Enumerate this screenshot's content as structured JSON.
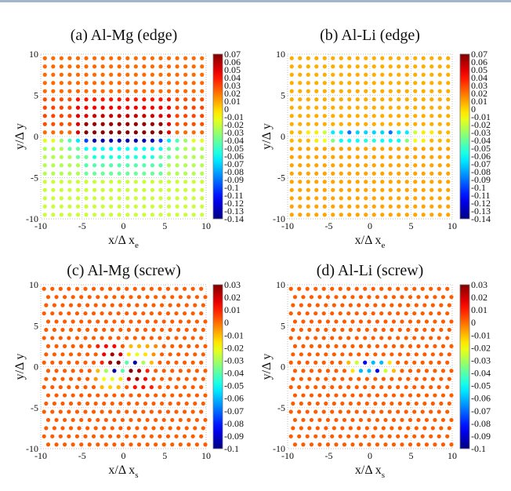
{
  "chart_data": [
    {
      "type": "scatter",
      "title": "(a) Al-Mg (edge)",
      "xlabel": "x/Δ x",
      "xlabel_sub": "e",
      "ylabel": "y/Δ y",
      "xlim": [
        -10,
        10
      ],
      "ylim": [
        -10,
        10
      ],
      "xticks": [
        "-10",
        "-5",
        "0",
        "5",
        "10"
      ],
      "yticks": [
        "10",
        "5",
        "0",
        "-5",
        "-10"
      ],
      "grid": true,
      "lattice": "edge",
      "colorbar": {
        "colormap": "jet",
        "range": [
          -0.14,
          0.07
        ],
        "ticks": [
          "0.07",
          "0.06",
          "0.05",
          "0.04",
          "0.03",
          "0.02",
          "0.01",
          "0",
          "-0.01",
          "-0.02",
          "-0.03",
          "-0.04",
          "-0.05",
          "-0.06",
          "-0.07",
          "-0.08",
          "-0.09",
          "-0.1",
          "-0.11",
          "-0.12",
          "-0.13",
          "-0.14"
        ]
      },
      "row_y": [
        9.5,
        8.5,
        7.5,
        6.5,
        5.5,
        4.5,
        3.5,
        2.5,
        1.5,
        0.5,
        -0.5,
        -1.5,
        -2.5,
        -3.5,
        -4.5,
        -5.5,
        -6.5,
        -7.5,
        -8.5,
        -9.5
      ],
      "row_background": [
        0.022,
        0.022,
        0.022,
        0.022,
        0.022,
        0.028,
        0.03,
        0.03,
        0.028,
        0.022,
        -0.015,
        -0.025,
        -0.025,
        -0.025,
        -0.025,
        -0.02,
        -0.02,
        -0.02,
        -0.02,
        -0.02
      ],
      "regions": [
        {
          "y": 4.5,
          "x_abs_max": 5.5,
          "v": 0.04
        },
        {
          "y": 3.5,
          "x_abs_max": 5.5,
          "v": 0.045
        },
        {
          "y": 2.5,
          "x_abs_max": 5.5,
          "v": 0.05
        },
        {
          "y": 2.5,
          "x_abs_max": 3.5,
          "v": 0.055
        },
        {
          "y": 1.5,
          "x_abs_max": 5.5,
          "v": 0.05
        },
        {
          "y": 1.5,
          "x_abs_max": 4.5,
          "v": 0.065
        },
        {
          "y": 0.5,
          "x_abs_max": 5.5,
          "v": 0.05
        },
        {
          "y": 0.5,
          "x_abs_max": 4.5,
          "v": 0.068
        },
        {
          "y": -0.5,
          "x_abs_max": 7.5,
          "v": -0.03
        },
        {
          "y": -0.5,
          "x_abs_max": 6.5,
          "v": -0.045
        },
        {
          "y": -0.5,
          "x_abs_max": 5.5,
          "v": -0.065
        },
        {
          "y": -0.5,
          "x_abs_max": 4.5,
          "v": -0.1
        },
        {
          "y": -0.5,
          "x_abs_max": 3.5,
          "v": -0.13
        },
        {
          "y": -1.5,
          "x_abs_max": 6.5,
          "v": -0.04
        },
        {
          "y": -1.5,
          "x_abs_max": 4.5,
          "v": -0.06
        },
        {
          "y": -2.5,
          "x_abs_max": 5.5,
          "v": -0.04
        },
        {
          "y": -2.5,
          "x_abs_max": 3.5,
          "v": -0.055
        },
        {
          "y": -3.5,
          "x_abs_max": 4.5,
          "v": -0.045
        },
        {
          "y": -4.5,
          "x_abs_max": 4.5,
          "v": -0.04
        }
      ]
    },
    {
      "type": "scatter",
      "title": "(b) Al-Li (edge)",
      "xlabel": "x/Δ x",
      "xlabel_sub": "e",
      "ylabel": "y/Δ y",
      "xlim": [
        -10,
        10
      ],
      "ylim": [
        -10,
        10
      ],
      "xticks": [
        "-10",
        "-5",
        "0",
        "5",
        "10"
      ],
      "yticks": [
        "10",
        "5",
        "0",
        "-5",
        "-10"
      ],
      "grid": true,
      "lattice": "edge",
      "colorbar": {
        "colormap": "jet",
        "range": [
          -0.14,
          0.07
        ],
        "ticks": [
          "0.07",
          "0.06",
          "0.05",
          "0.04",
          "0.03",
          "0.02",
          "0.01",
          "0",
          "-0.01",
          "-0.02",
          "-0.03",
          "-0.04",
          "-0.05",
          "-0.06",
          "-0.07",
          "-0.08",
          "-0.09",
          "-0.1",
          "-0.11",
          "-0.12",
          "-0.13",
          "-0.14"
        ]
      },
      "row_y": [
        9.5,
        8.5,
        7.5,
        6.5,
        5.5,
        4.5,
        3.5,
        2.5,
        1.5,
        0.5,
        -0.5,
        -1.5,
        -2.5,
        -3.5,
        -4.5,
        -5.5,
        -6.5,
        -7.5,
        -8.5,
        -9.5
      ],
      "row_background": [
        0.008,
        0.008,
        0.008,
        0.008,
        0.008,
        0.008,
        0.008,
        0.008,
        0.008,
        0.006,
        0.006,
        0.01,
        0.01,
        0.01,
        0.01,
        0.01,
        0.01,
        0.01,
        0.01,
        0.01
      ],
      "regions": [
        {
          "y": 0.5,
          "x_abs_max": 7.5,
          "v": -0.005
        },
        {
          "y": 0.5,
          "x_abs_max": 5.5,
          "v": -0.02
        },
        {
          "y": 0.5,
          "x_abs_max": 4.5,
          "v": -0.065
        },
        {
          "y": 0.5,
          "x_abs_max": 2.5,
          "v": -0.09
        },
        {
          "y": 0.5,
          "x_abs_max": 1.5,
          "v": -0.07
        },
        {
          "y": -0.5,
          "x_abs_max": 6.5,
          "v": -0.005
        },
        {
          "y": -0.5,
          "x_abs_max": 5.5,
          "v": -0.012
        },
        {
          "y": -0.5,
          "x_abs_max": 4.5,
          "v": -0.035
        },
        {
          "y": -0.5,
          "x_abs_max": 3.5,
          "v": -0.06
        },
        {
          "y": -0.5,
          "x_abs_max": 0.5,
          "v": -0.055
        }
      ]
    },
    {
      "type": "scatter",
      "title": "(c) Al-Mg (screw)",
      "xlabel": "x/Δ x",
      "xlabel_sub": "s",
      "ylabel": "y/Δ y",
      "xlim": [
        -10,
        10
      ],
      "ylim": [
        -10,
        10
      ],
      "xticks": [
        "-10",
        "-5",
        "0",
        "5",
        "10"
      ],
      "yticks": [
        "10",
        "5",
        "0",
        "-5",
        "-10"
      ],
      "grid": true,
      "lattice": "screw",
      "colorbar": {
        "colormap": "jet",
        "range": [
          -0.1,
          0.03
        ],
        "ticks": [
          "0.03",
          "0.02",
          "0.01",
          "0",
          "-0.01",
          "-0.02",
          "-0.03",
          "-0.04",
          "-0.05",
          "-0.06",
          "-0.07",
          "-0.08",
          "-0.09",
          "-0.1"
        ]
      },
      "background": 0.002,
      "points": [
        {
          "x": -3.1,
          "y": 2.5,
          "v": 0.01
        },
        {
          "x": -2.2,
          "y": 2.5,
          "v": 0.013
        },
        {
          "x": -1.2,
          "y": 2.5,
          "v": 0.013
        },
        {
          "x": 0.7,
          "y": 2.5,
          "v": -0.01
        },
        {
          "x": 1.6,
          "y": 2.5,
          "v": -0.01
        },
        {
          "x": 2.5,
          "y": 2.5,
          "v": -0.008
        },
        {
          "x": 3.5,
          "y": 2.5,
          "v": -0.004
        },
        {
          "x": -2.6,
          "y": 1.5,
          "v": 0.015
        },
        {
          "x": -1.6,
          "y": 1.5,
          "v": 0.025
        },
        {
          "x": -0.6,
          "y": 1.5,
          "v": 0.02
        },
        {
          "x": 0.4,
          "y": 1.5,
          "v": -0.015
        },
        {
          "x": 1.4,
          "y": 1.5,
          "v": -0.022
        },
        {
          "x": 2.4,
          "y": 1.5,
          "v": -0.015
        },
        {
          "x": 3.3,
          "y": 1.5,
          "v": -0.005
        },
        {
          "x": -2.8,
          "y": 0.5,
          "v": 0.01
        },
        {
          "x": -1.9,
          "y": 0.5,
          "v": 0.025
        },
        {
          "x": -0.9,
          "y": 0.5,
          "v": 0.03
        },
        {
          "x": 0.0,
          "y": 0.5,
          "v": -0.04
        },
        {
          "x": 1.1,
          "y": 0.5,
          "v": -0.095
        },
        {
          "x": 2.0,
          "y": 0.5,
          "v": -0.03
        },
        {
          "x": 3.0,
          "y": 0.5,
          "v": -0.01
        },
        {
          "x": -3.1,
          "y": -0.5,
          "v": -0.01
        },
        {
          "x": -2.1,
          "y": -0.5,
          "v": -0.03
        },
        {
          "x": -1.1,
          "y": -0.5,
          "v": -0.095
        },
        {
          "x": -0.1,
          "y": -0.5,
          "v": -0.04
        },
        {
          "x": 0.9,
          "y": -0.5,
          "v": 0.03
        },
        {
          "x": 1.9,
          "y": -0.5,
          "v": 0.025
        },
        {
          "x": 2.8,
          "y": -0.5,
          "v": 0.01
        },
        {
          "x": -3.4,
          "y": -1.5,
          "v": -0.005
        },
        {
          "x": -2.4,
          "y": -1.5,
          "v": -0.02
        },
        {
          "x": -1.4,
          "y": -1.5,
          "v": -0.022
        },
        {
          "x": -0.4,
          "y": -1.5,
          "v": -0.015
        },
        {
          "x": 0.6,
          "y": -1.5,
          "v": 0.02
        },
        {
          "x": 1.6,
          "y": -1.5,
          "v": 0.025
        },
        {
          "x": 2.6,
          "y": -1.5,
          "v": 0.015
        },
        {
          "x": -2.8,
          "y": -2.5,
          "v": -0.01
        },
        {
          "x": -1.8,
          "y": -2.5,
          "v": -0.013
        },
        {
          "x": -0.8,
          "y": -2.5,
          "v": -0.01
        },
        {
          "x": 1.2,
          "y": -2.5,
          "v": 0.012
        },
        {
          "x": 2.2,
          "y": -2.5,
          "v": 0.012
        },
        {
          "x": 3.1,
          "y": -2.5,
          "v": 0.01
        }
      ]
    },
    {
      "type": "scatter",
      "title": "(d) Al-Li (screw)",
      "xlabel": "x/Δ x",
      "xlabel_sub": "s",
      "ylabel": "y/Δ y",
      "xlim": [
        -10,
        10
      ],
      "ylim": [
        -10,
        10
      ],
      "xticks": [
        "-10",
        "-5",
        "0",
        "5",
        "10"
      ],
      "yticks": [
        "10",
        "5",
        "0",
        "-5",
        "-10"
      ],
      "grid": true,
      "lattice": "screw",
      "colorbar": {
        "colormap": "jet",
        "range": [
          -0.1,
          0.03
        ],
        "ticks": [
          "0.03",
          "0.02",
          "0.01",
          "0",
          "-0.01",
          "-0.02",
          "-0.03",
          "-0.04",
          "-0.05",
          "-0.06",
          "-0.07",
          "-0.08",
          "-0.09",
          "-0.1"
        ]
      },
      "background": 0.002,
      "points": [
        {
          "x": -2.8,
          "y": 0.5,
          "v": -0.01
        },
        {
          "x": -1.9,
          "y": 0.5,
          "v": -0.025
        },
        {
          "x": -1.0,
          "y": 0.5,
          "v": -0.085
        },
        {
          "x": 0.0,
          "y": 0.5,
          "v": -0.06
        },
        {
          "x": 1.0,
          "y": 0.5,
          "v": -0.06
        },
        {
          "x": 2.1,
          "y": 0.5,
          "v": -0.015
        },
        {
          "x": -2.2,
          "y": -0.5,
          "v": -0.015
        },
        {
          "x": -1.2,
          "y": -0.5,
          "v": -0.06
        },
        {
          "x": -0.1,
          "y": -0.5,
          "v": -0.06
        },
        {
          "x": 0.9,
          "y": -0.5,
          "v": -0.085
        },
        {
          "x": 1.8,
          "y": -0.5,
          "v": -0.025
        },
        {
          "x": 2.8,
          "y": -0.5,
          "v": -0.01
        }
      ]
    }
  ]
}
